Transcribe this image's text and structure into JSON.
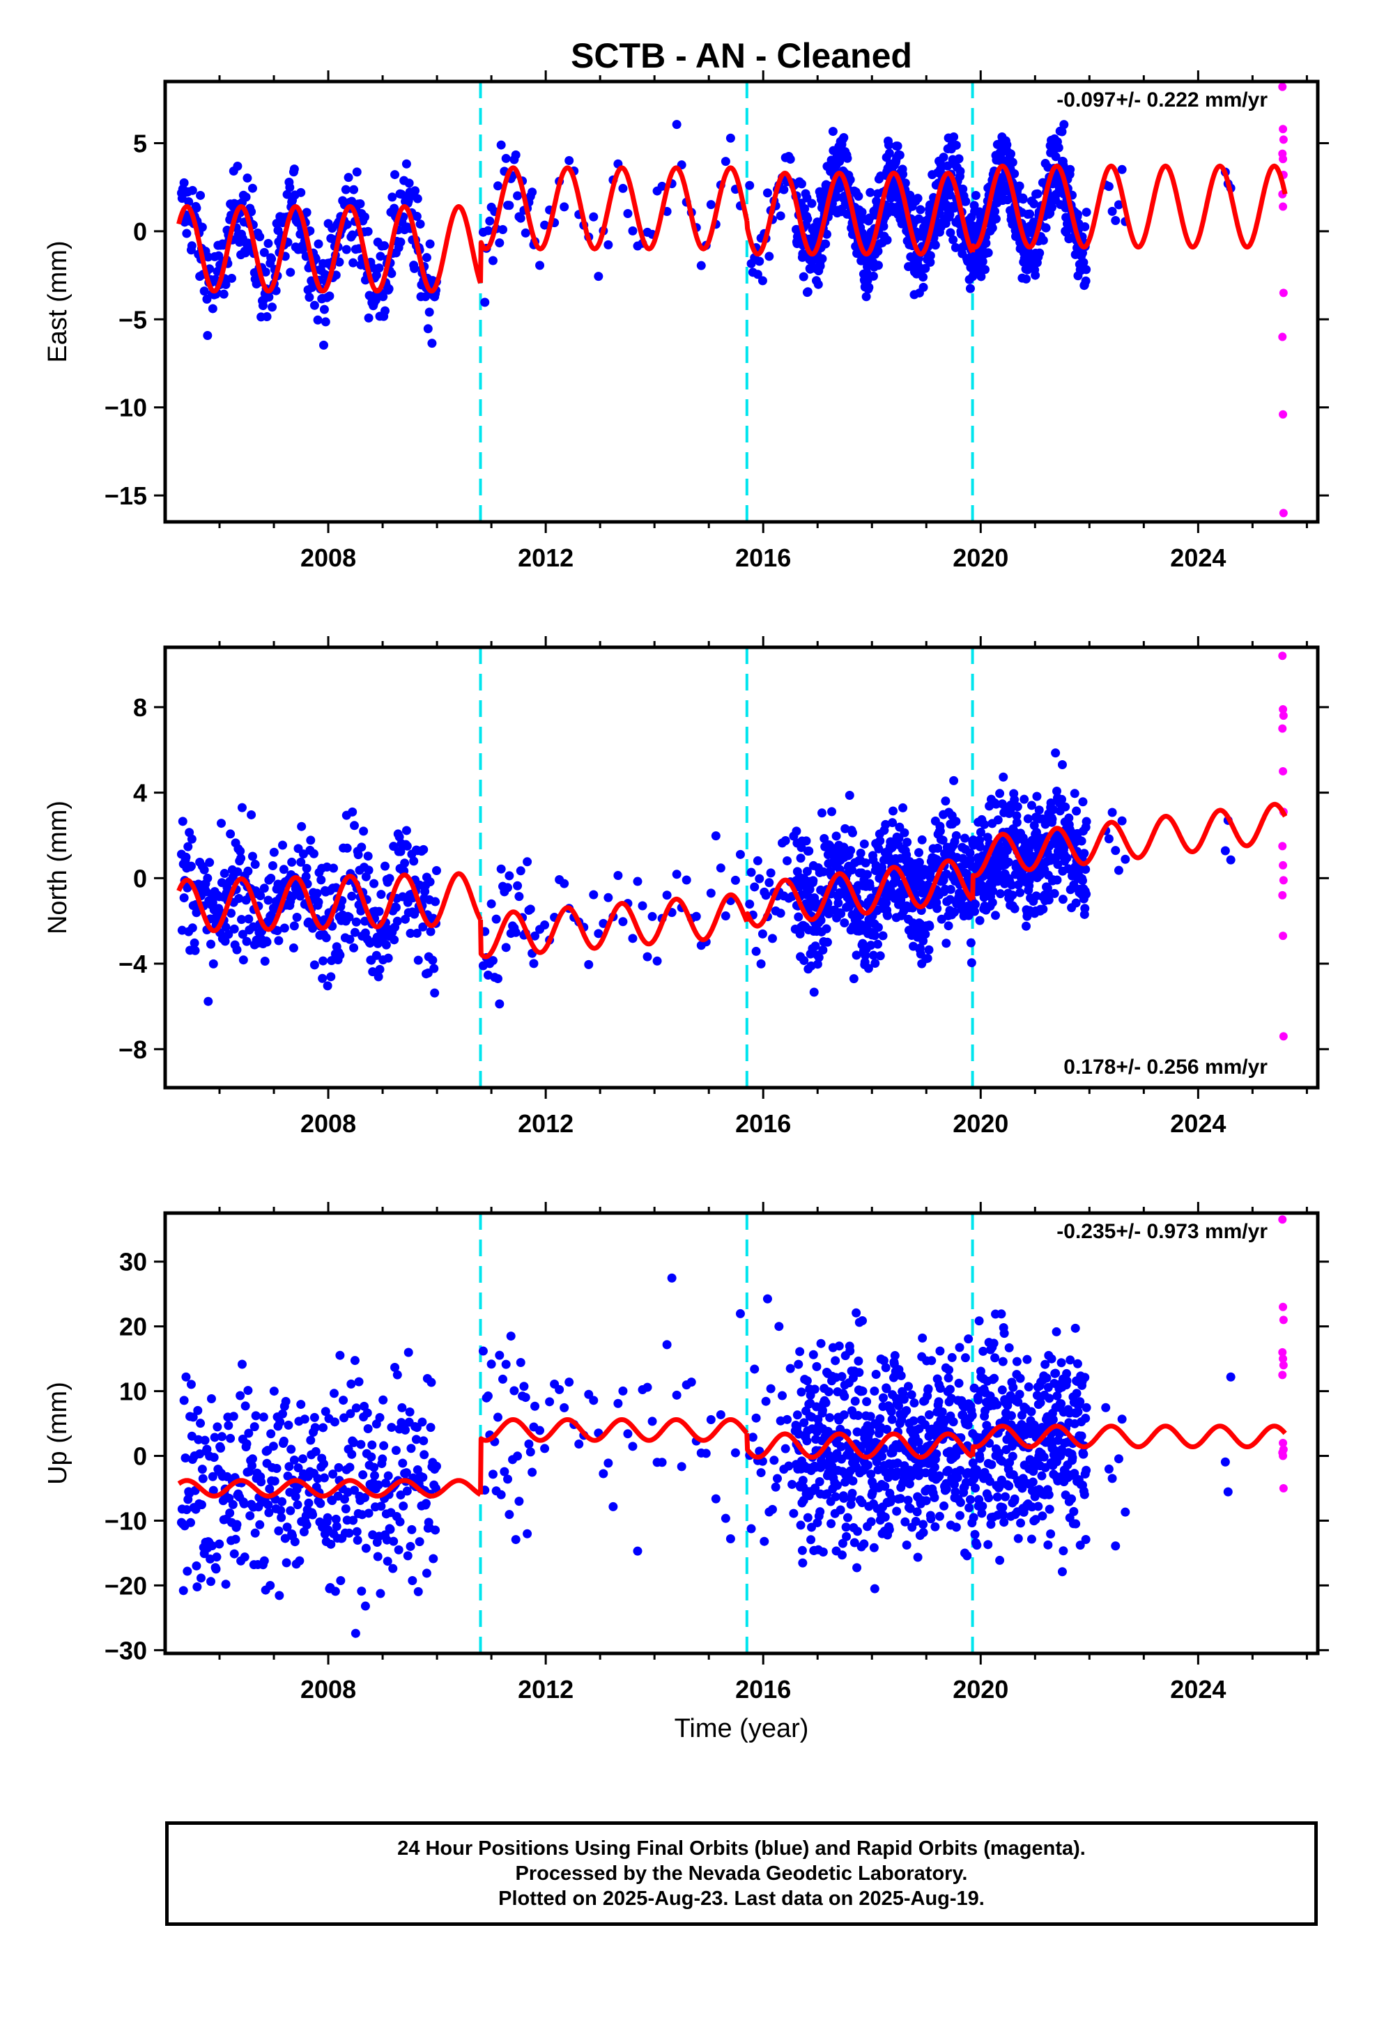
{
  "chart_data": {
    "type": "scatter",
    "title": "SCTB  - AN - Cleaned",
    "xlabel": "Time (year)",
    "xlim": [
      2005.0,
      2026.2
    ],
    "x_ticks": [
      2008,
      2012,
      2016,
      2020,
      2024
    ],
    "x_tick_labels": [
      "2008",
      "2012",
      "2016",
      "2020",
      "2024"
    ],
    "grid": false,
    "step_epochs": [
      2010.8,
      2015.7,
      2019.85
    ],
    "step_color": "#00e5ee",
    "data_span": {
      "start": 2005.3,
      "final_end": 2025.6,
      "rapid_start": 2025.55
    },
    "series_colors": {
      "final": "#0000ff",
      "rapid": "#ff00ff",
      "model": "#ff0000"
    },
    "panels": [
      {
        "name": "east",
        "ylabel": "East (mm)",
        "ylim": [
          -16.5,
          8.5
        ],
        "y_ticks": [
          5,
          0,
          -5,
          -10,
          -15
        ],
        "y_tick_labels": [
          "5",
          "0",
          "−5",
          "−10",
          "−15"
        ],
        "rate_text": "-0.097+/- 0.222 mm/yr",
        "rate_position": "top-right",
        "model_segments": [
          {
            "x": [
              2005.25,
              2010.8
            ],
            "offset": -1.0,
            "trend": 0.0,
            "amplitude": 2.4
          },
          {
            "x": [
              2010.8,
              2015.7
            ],
            "offset": 1.3,
            "trend": 0.0,
            "amplitude": 2.3
          },
          {
            "x": [
              2015.7,
              2019.85
            ],
            "offset": 1.0,
            "trend": 0.0,
            "amplitude": 2.3
          },
          {
            "x": [
              2019.85,
              2025.6
            ],
            "offset": 1.4,
            "trend": 0.0,
            "amplitude": 2.3
          }
        ],
        "scatter": {
          "amplitude": 2.1,
          "noise": 1.3
        },
        "rapid_values": [
          8.2,
          5.8,
          5.2,
          4.4,
          4.1,
          3.2,
          2.1,
          1.4,
          -3.5,
          -6.0,
          -10.4,
          -16.0
        ]
      },
      {
        "name": "north",
        "ylabel": "North (mm)",
        "ylim": [
          -9.8,
          10.8
        ],
        "y_ticks": [
          8,
          4,
          0,
          -4,
          -8
        ],
        "y_tick_labels": [
          "8",
          "4",
          "0",
          "−4",
          "−8"
        ],
        "rate_text": "0.178+/- 0.256 mm/yr",
        "rate_position": "bottom-right",
        "model_segments": [
          {
            "x": [
              2005.25,
              2010.8
            ],
            "offset": -1.3,
            "trend": 0.06,
            "amplitude": 1.2
          },
          {
            "x": [
              2010.8,
              2015.7
            ],
            "offset": -2.7,
            "trend": 0.2,
            "amplitude": 1.0
          },
          {
            "x": [
              2015.7,
              2019.85
            ],
            "offset": -1.3,
            "trend": 0.3,
            "amplitude": 1.0
          },
          {
            "x": [
              2019.85,
              2025.6
            ],
            "offset": 1.0,
            "trend": 0.28,
            "amplitude": 0.9
          }
        ],
        "scatter": {
          "amplitude": 0.9,
          "noise": 1.5
        },
        "rapid_values": [
          10.4,
          7.9,
          7.6,
          7.0,
          5.0,
          3.1,
          1.5,
          0.6,
          -0.1,
          -0.8,
          -2.7,
          -7.4
        ]
      },
      {
        "name": "up",
        "ylabel": "Up (mm)",
        "ylim": [
          -30.5,
          37.5
        ],
        "y_ticks": [
          30,
          20,
          10,
          0,
          -10,
          -20,
          -30
        ],
        "y_tick_labels": [
          "30",
          "20",
          "10",
          "0",
          "−10",
          "−20",
          "−30"
        ],
        "rate_text": "-0.235+/- 0.973 mm/yr",
        "rate_position": "top-right",
        "model_segments": [
          {
            "x": [
              2005.25,
              2010.8
            ],
            "offset": -5.0,
            "trend": 0.0,
            "amplitude": 1.2
          },
          {
            "x": [
              2010.8,
              2015.7
            ],
            "offset": 4.0,
            "trend": 0.0,
            "amplitude": 1.6
          },
          {
            "x": [
              2015.7,
              2019.85
            ],
            "offset": 1.6,
            "trend": 0.0,
            "amplitude": 1.8
          },
          {
            "x": [
              2019.85,
              2025.6
            ],
            "offset": 3.0,
            "trend": 0.0,
            "amplitude": 1.6
          }
        ],
        "scatter": {
          "amplitude": 1.0,
          "noise": 8.0
        },
        "rapid_values": [
          36.5,
          23.0,
          21.0,
          16.0,
          15.0,
          14.0,
          12.5,
          2.0,
          1.0,
          0.5,
          0.0,
          -5.0
        ]
      }
    ]
  },
  "footer": {
    "line1": "24 Hour Positions Using Final Orbits (blue) and Rapid Orbits (magenta).",
    "line2": "Processed by the Nevada Geodetic Laboratory.",
    "line3": "Plotted on 2025-Aug-23. Last data on 2025-Aug-19."
  }
}
